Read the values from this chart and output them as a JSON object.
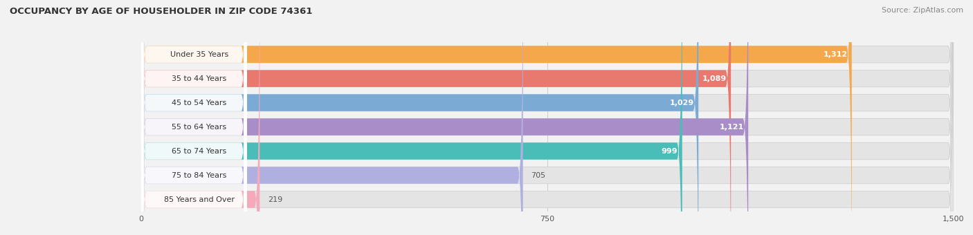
{
  "title": "OCCUPANCY BY AGE OF HOUSEHOLDER IN ZIP CODE 74361",
  "source": "Source: ZipAtlas.com",
  "categories": [
    "Under 35 Years",
    "35 to 44 Years",
    "45 to 54 Years",
    "55 to 64 Years",
    "65 to 74 Years",
    "75 to 84 Years",
    "85 Years and Over"
  ],
  "values": [
    1312,
    1089,
    1029,
    1121,
    999,
    705,
    219
  ],
  "bar_colors": [
    "#F5A84B",
    "#E8796E",
    "#7BAAD4",
    "#A98DC8",
    "#4BBDB8",
    "#B0B0E0",
    "#F4AABB"
  ],
  "xlim": [
    0,
    1500
  ],
  "xticks": [
    0,
    750,
    1500
  ],
  "xtick_labels": [
    "0",
    "750",
    "1,500"
  ],
  "value_labels_white": [
    true,
    true,
    true,
    true,
    true,
    false,
    false
  ],
  "background_color": "#f2f2f2",
  "bar_bg_color": "#e4e4e4",
  "label_box_color": "#ffffff"
}
